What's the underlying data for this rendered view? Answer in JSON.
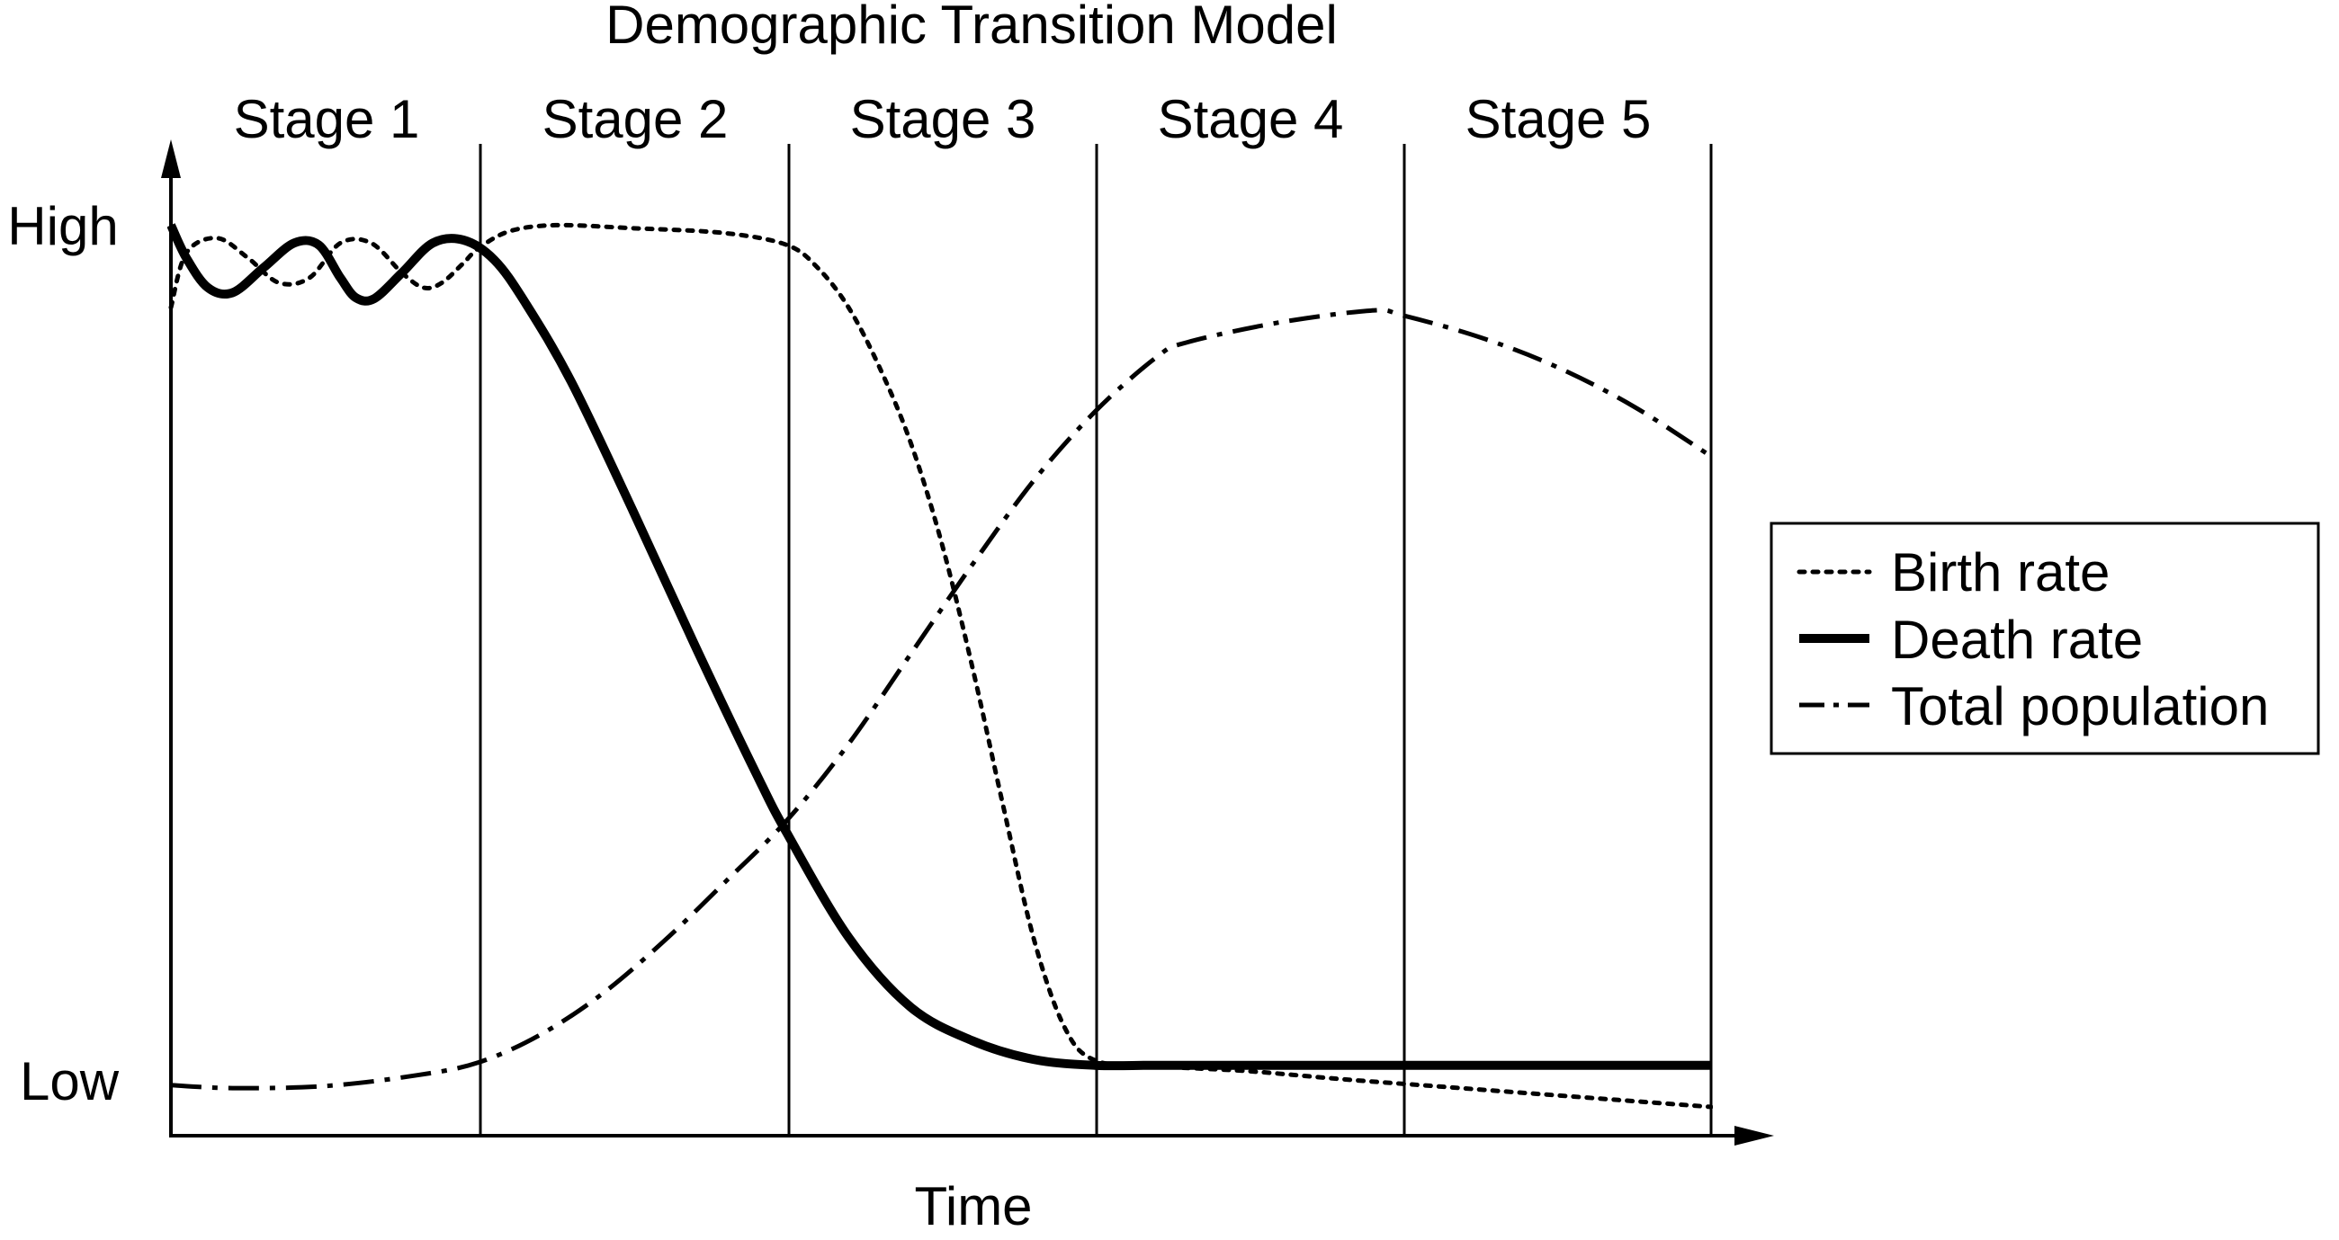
{
  "chart_data": {
    "type": "line",
    "title": "Demographic Transition Model",
    "xlabel": "Time",
    "ylabel": "",
    "y_tick_labels": {
      "high": "High",
      "low": "Low"
    },
    "stages": [
      "Stage 1",
      "Stage 2",
      "Stage 3",
      "Stage 4",
      "Stage 5"
    ],
    "xlim": [
      0,
      5
    ],
    "ylim": [
      0,
      100
    ],
    "grid": false,
    "legend_position": "right",
    "series": [
      {
        "name": "Birth rate",
        "style": "dotted",
        "color": "#000000",
        "points": [
          [
            0.0,
            83.5
          ],
          [
            0.05,
            89.0
          ],
          [
            0.15,
            90.5
          ],
          [
            0.25,
            88.5
          ],
          [
            0.35,
            86.0
          ],
          [
            0.45,
            86.5
          ],
          [
            0.55,
            90.0
          ],
          [
            0.65,
            90.0
          ],
          [
            0.75,
            87.0
          ],
          [
            0.82,
            85.5
          ],
          [
            0.88,
            86.0
          ],
          [
            0.95,
            88.0
          ],
          [
            1.0,
            89.5
          ],
          [
            1.1,
            91.2
          ],
          [
            1.25,
            91.8
          ],
          [
            1.5,
            91.5
          ],
          [
            1.8,
            91.0
          ],
          [
            2.0,
            89.8
          ],
          [
            2.1,
            87.5
          ],
          [
            2.2,
            83.5
          ],
          [
            2.3,
            77.5
          ],
          [
            2.4,
            70.0
          ],
          [
            2.5,
            60.0
          ],
          [
            2.6,
            47.5
          ],
          [
            2.7,
            33.5
          ],
          [
            2.8,
            20.0
          ],
          [
            2.9,
            11.0
          ],
          [
            3.0,
            7.6
          ],
          [
            3.2,
            7.0
          ],
          [
            3.5,
            6.5
          ],
          [
            3.8,
            5.7
          ],
          [
            4.1,
            5.0
          ],
          [
            4.4,
            4.3
          ],
          [
            4.7,
            3.6
          ],
          [
            5.0,
            2.9
          ]
        ]
      },
      {
        "name": "Death rate",
        "style": "solid",
        "color": "#000000",
        "points": [
          [
            0.0,
            91.8
          ],
          [
            0.05,
            88.5
          ],
          [
            0.12,
            85.5
          ],
          [
            0.2,
            85.0
          ],
          [
            0.3,
            87.5
          ],
          [
            0.4,
            90.0
          ],
          [
            0.48,
            89.8
          ],
          [
            0.55,
            86.5
          ],
          [
            0.6,
            84.5
          ],
          [
            0.66,
            84.4
          ],
          [
            0.75,
            87.0
          ],
          [
            0.85,
            90.0
          ],
          [
            0.95,
            90.3
          ],
          [
            1.05,
            88.3
          ],
          [
            1.15,
            84.0
          ],
          [
            1.3,
            76.0
          ],
          [
            1.5,
            63.0
          ],
          [
            1.7,
            49.5
          ],
          [
            1.9,
            36.5
          ],
          [
            2.0,
            30.5
          ],
          [
            2.2,
            20.0
          ],
          [
            2.4,
            13.0
          ],
          [
            2.6,
            9.6
          ],
          [
            2.8,
            7.7
          ],
          [
            3.0,
            7.1
          ],
          [
            3.2,
            7.1
          ],
          [
            3.5,
            7.1
          ],
          [
            4.0,
            7.1
          ],
          [
            4.5,
            7.1
          ],
          [
            5.0,
            7.1
          ]
        ]
      },
      {
        "name": "Total population",
        "style": "dash-dot",
        "color": "#000000",
        "points": [
          [
            0.0,
            5.1
          ],
          [
            0.2,
            4.8
          ],
          [
            0.5,
            5.0
          ],
          [
            0.8,
            6.1
          ],
          [
            1.0,
            7.4
          ],
          [
            1.2,
            10.2
          ],
          [
            1.4,
            14.3
          ],
          [
            1.6,
            19.6
          ],
          [
            1.8,
            25.6
          ],
          [
            2.0,
            31.8
          ],
          [
            2.2,
            39.5
          ],
          [
            2.4,
            48.5
          ],
          [
            2.6,
            57.5
          ],
          [
            2.8,
            66.0
          ],
          [
            3.0,
            73.0
          ],
          [
            3.2,
            78.5
          ],
          [
            3.3,
            80.0
          ],
          [
            3.6,
            82.0
          ],
          [
            3.9,
            83.2
          ],
          [
            4.0,
            82.7
          ],
          [
            4.25,
            80.5
          ],
          [
            4.5,
            77.5
          ],
          [
            4.75,
            73.5
          ],
          [
            5.0,
            68.5
          ]
        ]
      }
    ]
  }
}
